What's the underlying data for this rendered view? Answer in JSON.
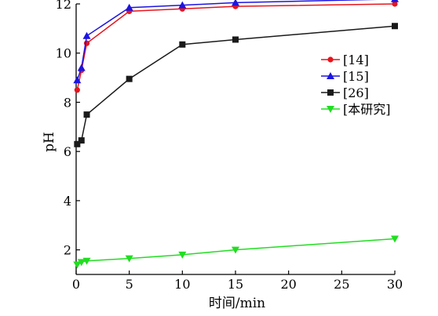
{
  "chart_data": {
    "type": "line",
    "xlabel": "时间/min",
    "ylabel": "pH",
    "xlim": [
      0,
      30
    ],
    "ylim": [
      1,
      12
    ],
    "xticks": [
      0,
      5,
      10,
      15,
      20,
      25,
      30
    ],
    "yticks": [
      2,
      4,
      6,
      8,
      10,
      12
    ],
    "grid": false,
    "legend_position": "right-middle",
    "series": [
      {
        "name": "[14]",
        "color": "#e8141c",
        "marker": "circle",
        "x": [
          0.1,
          0.5,
          1,
          5,
          10,
          15,
          30
        ],
        "y": [
          8.5,
          9.3,
          10.4,
          11.7,
          11.8,
          11.9,
          12.0
        ]
      },
      {
        "name": "[15]",
        "color": "#1c14e0",
        "marker": "triangle-up",
        "x": [
          0.1,
          0.5,
          1,
          5,
          10,
          15,
          30
        ],
        "y": [
          8.9,
          9.4,
          10.7,
          11.85,
          11.95,
          12.05,
          12.2
        ]
      },
      {
        "name": "[26]",
        "color": "#1a1a1a",
        "marker": "square",
        "x": [
          0.1,
          0.5,
          1,
          5,
          10,
          15,
          30
        ],
        "y": [
          6.3,
          6.45,
          7.5,
          8.95,
          10.35,
          10.55,
          11.1
        ]
      },
      {
        "name": "[本研究]",
        "color": "#22dd22",
        "marker": "triangle-down",
        "x": [
          0.1,
          0.5,
          1,
          5,
          10,
          15,
          30
        ],
        "y": [
          1.4,
          1.5,
          1.55,
          1.65,
          1.8,
          2.0,
          2.45
        ]
      }
    ]
  }
}
